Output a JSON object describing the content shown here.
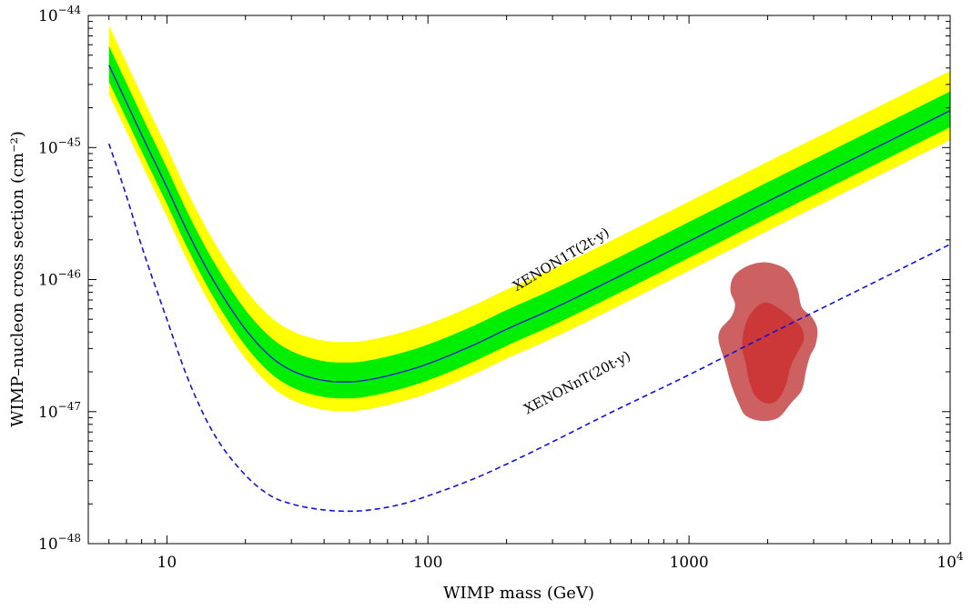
{
  "chart_data": {
    "type": "line",
    "xlabel": "WIMP mass (GeV)",
    "ylabel": "WIMP–nucleon cross section (cm⁻²)",
    "x_scale": "log",
    "y_scale": "log",
    "xlim": [
      5,
      10000
    ],
    "ylim": [
      1e-48,
      1e-44
    ],
    "x_ticks": [
      {
        "value": 10,
        "label": "10"
      },
      {
        "value": 100,
        "label": "100"
      },
      {
        "value": 1000,
        "label": "1000"
      },
      {
        "value": 10000,
        "label": "10",
        "exp": "4"
      }
    ],
    "y_ticks": [
      {
        "value": 1e-48,
        "label": "10",
        "exp": "−48"
      },
      {
        "value": 1e-47,
        "label": "10",
        "exp": "−47"
      },
      {
        "value": 1e-46,
        "label": "10",
        "exp": "−46"
      },
      {
        "value": 1e-45,
        "label": "10",
        "exp": "−45"
      },
      {
        "value": 1e-44,
        "label": "10",
        "exp": "−44"
      }
    ],
    "mass": [
      6,
      7,
      8,
      10,
      12,
      15,
      20,
      25,
      30,
      40,
      50,
      60,
      80,
      100,
      150,
      200,
      300,
      500,
      1000,
      2000,
      5000,
      10000
    ],
    "series": [
      {
        "name": "XENON1T(2t·y)",
        "style": "solid",
        "color": "#2222cc",
        "values": [
          4.2e-45,
          2.2e-45,
          1.25e-45,
          5e-46,
          2.3e-46,
          1e-46,
          4.2e-47,
          2.6e-47,
          2.05e-47,
          1.72e-47,
          1.68e-47,
          1.75e-47,
          2e-47,
          2.3e-47,
          3.2e-47,
          4.2e-47,
          6e-47,
          9.8e-47,
          1.95e-46,
          3.9e-46,
          9.6e-46,
          1.9e-45
        ]
      },
      {
        "name": "XENONnT(20t·y)",
        "style": "dashed",
        "color": "#1111dd",
        "values": [
          1.07e-45,
          4.3e-46,
          1.8e-46,
          5e-47,
          1.8e-47,
          7e-48,
          3.3e-48,
          2.3e-48,
          2e-48,
          1.8e-48,
          1.76e-48,
          1.8e-48,
          2e-48,
          2.3e-48,
          3.1e-48,
          4e-48,
          5.9e-48,
          9.8e-48,
          1.9e-47,
          3.8e-47,
          9.3e-47,
          1.85e-46
        ]
      }
    ],
    "bands": [
      {
        "level": "2sigma",
        "color": "#ffff00",
        "low_factor": 0.6,
        "high_factor": 2.0
      },
      {
        "level": "1sigma",
        "color": "#00ee00",
        "low_factor": 0.75,
        "high_factor": 1.4
      }
    ],
    "regions": [
      {
        "level": "outer",
        "color": "#cd6060",
        "points": [
          [
            1900,
            1.35e-46
          ],
          [
            2150,
            1.3e-46
          ],
          [
            2400,
            1.15e-46
          ],
          [
            2600,
            8.5e-47
          ],
          [
            2700,
            6.2e-47
          ],
          [
            2950,
            5.2e-47
          ],
          [
            3100,
            4.2e-47
          ],
          [
            3050,
            3.2e-47
          ],
          [
            2900,
            2.6e-47
          ],
          [
            2800,
            2e-47
          ],
          [
            2700,
            1.45e-47
          ],
          [
            2450,
            1.15e-47
          ],
          [
            2200,
            9e-48
          ],
          [
            1900,
            8.5e-48
          ],
          [
            1650,
            9.3e-48
          ],
          [
            1550,
            1.15e-47
          ],
          [
            1450,
            1.6e-47
          ],
          [
            1380,
            2.3e-47
          ],
          [
            1300,
            3.4e-47
          ],
          [
            1320,
            4.2e-47
          ],
          [
            1450,
            5.2e-47
          ],
          [
            1500,
            6.5e-47
          ],
          [
            1440,
            8.2e-47
          ],
          [
            1480,
            1.05e-46
          ],
          [
            1650,
            1.25e-46
          ]
        ],
        "label": ""
      },
      {
        "level": "inner",
        "color": "#cc3838",
        "points": [
          [
            1950,
            6.7e-47
          ],
          [
            2250,
            5.9e-47
          ],
          [
            2500,
            5e-47
          ],
          [
            2700,
            4.3e-47
          ],
          [
            2750,
            3.5e-47
          ],
          [
            2600,
            2.8e-47
          ],
          [
            2450,
            2.2e-47
          ],
          [
            2350,
            1.6e-47
          ],
          [
            2200,
            1.25e-47
          ],
          [
            2000,
            1.15e-47
          ],
          [
            1800,
            1.3e-47
          ],
          [
            1700,
            1.7e-47
          ],
          [
            1650,
            2.3e-47
          ],
          [
            1600,
            3e-47
          ],
          [
            1620,
            4.1e-47
          ],
          [
            1720,
            5.5e-47
          ]
        ],
        "label": ""
      }
    ],
    "annotations": [
      {
        "text": "XENON1T(2t·y)",
        "mass": 330,
        "sigma": 1.33e-46,
        "angle": -31
      },
      {
        "text": "XENONnT(20t·y)",
        "mass": 380,
        "sigma": 1.55e-47,
        "angle": -28
      }
    ],
    "grid": false,
    "legend": "none"
  }
}
